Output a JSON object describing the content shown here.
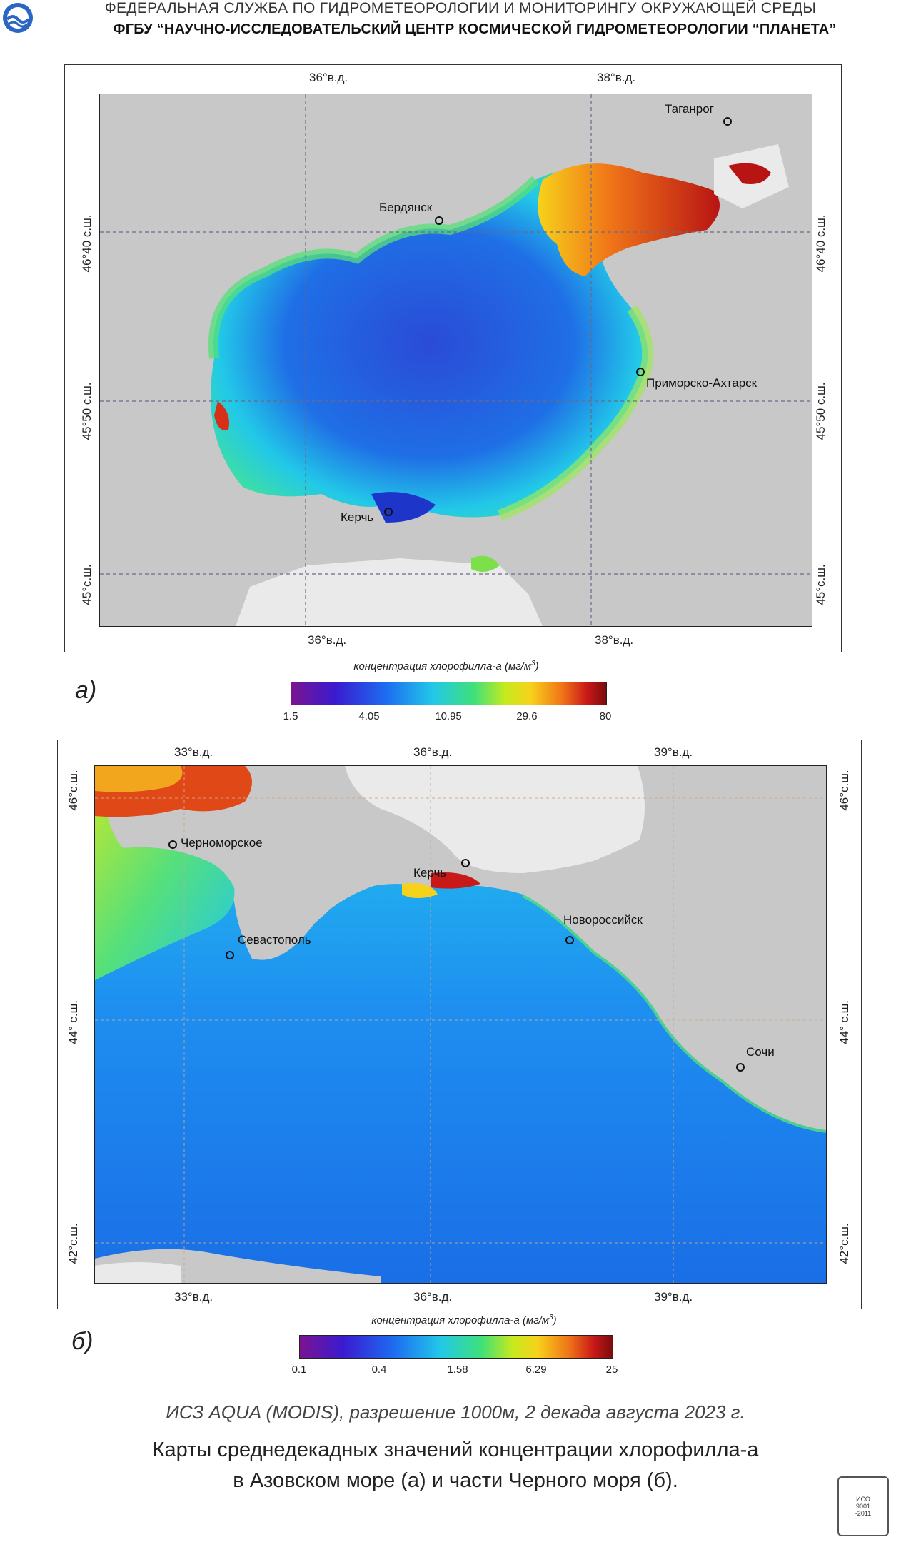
{
  "header": {
    "line1": "ФЕДЕРАЛЬНАЯ  СЛУЖБА  ПО ГИДРОМЕТЕОРОЛОГИИ И МОНИТОРИНГУ ОКРУЖАЮЩЕЙ СРЕДЫ",
    "line2": "ФГБУ “НАУЧНО-ИССЛЕДОВАТЕЛЬСКИЙ ЦЕНТР КОСМИЧЕСКОЙ ГИДРОМЕТЕОРОЛОГИИ “ПЛАНЕТА”",
    "logo_icon": "roshydromet-logo-icon"
  },
  "map_a": {
    "panel_label": "а)",
    "lon_labels": [
      "36°в.д.",
      "38°в.д."
    ],
    "lat_labels": [
      "46°40 с.ш.",
      "45°50 с.ш.",
      "45°с.ш."
    ],
    "cities": [
      "Таганрог",
      "Бердянск",
      "Приморско-Ахтарск",
      "Керчь"
    ],
    "colorbar": {
      "title": "концентрация хлорофилла-а  (мг/м",
      "sup": "3",
      "close": ")",
      "ticks": [
        "1.5",
        "4.05",
        "10.95",
        "29.6",
        "80"
      ]
    }
  },
  "map_b": {
    "panel_label": "б)",
    "lon_labels": [
      "33°в.д.",
      "36°в.д.",
      "39°в.д."
    ],
    "lat_labels": [
      "46°с.ш.",
      "44° с.ш.",
      "42°с.ш."
    ],
    "cities": [
      "Черноморское",
      "Керчь",
      "Новороссийск",
      "Севастополь",
      "Сочи"
    ],
    "colorbar": {
      "title": "концентрация хлорофилла-а  (мг/м",
      "sup": "3",
      "close": ")",
      "ticks": [
        "0.1",
        "0.4",
        "1.58",
        "6.29",
        "25"
      ]
    }
  },
  "colors": {
    "land": "#c8c8c8",
    "cloud": "#eaeaea",
    "low": "#2a4bd6",
    "mid": "#22c8e8",
    "high": "#b81414"
  },
  "caption": "ИСЗ AQUA (MODIS), разрешение 1000м, 2 декада августа 2023 г.",
  "title": {
    "line1": "Карты среднедекадных значений концентрации хлорофилла-а",
    "line2": "в Азовском море (а) и части Черного моря (б)."
  },
  "stamp": {
    "text1": "ИСО",
    "text2": "9001",
    "text3": "-2011"
  }
}
